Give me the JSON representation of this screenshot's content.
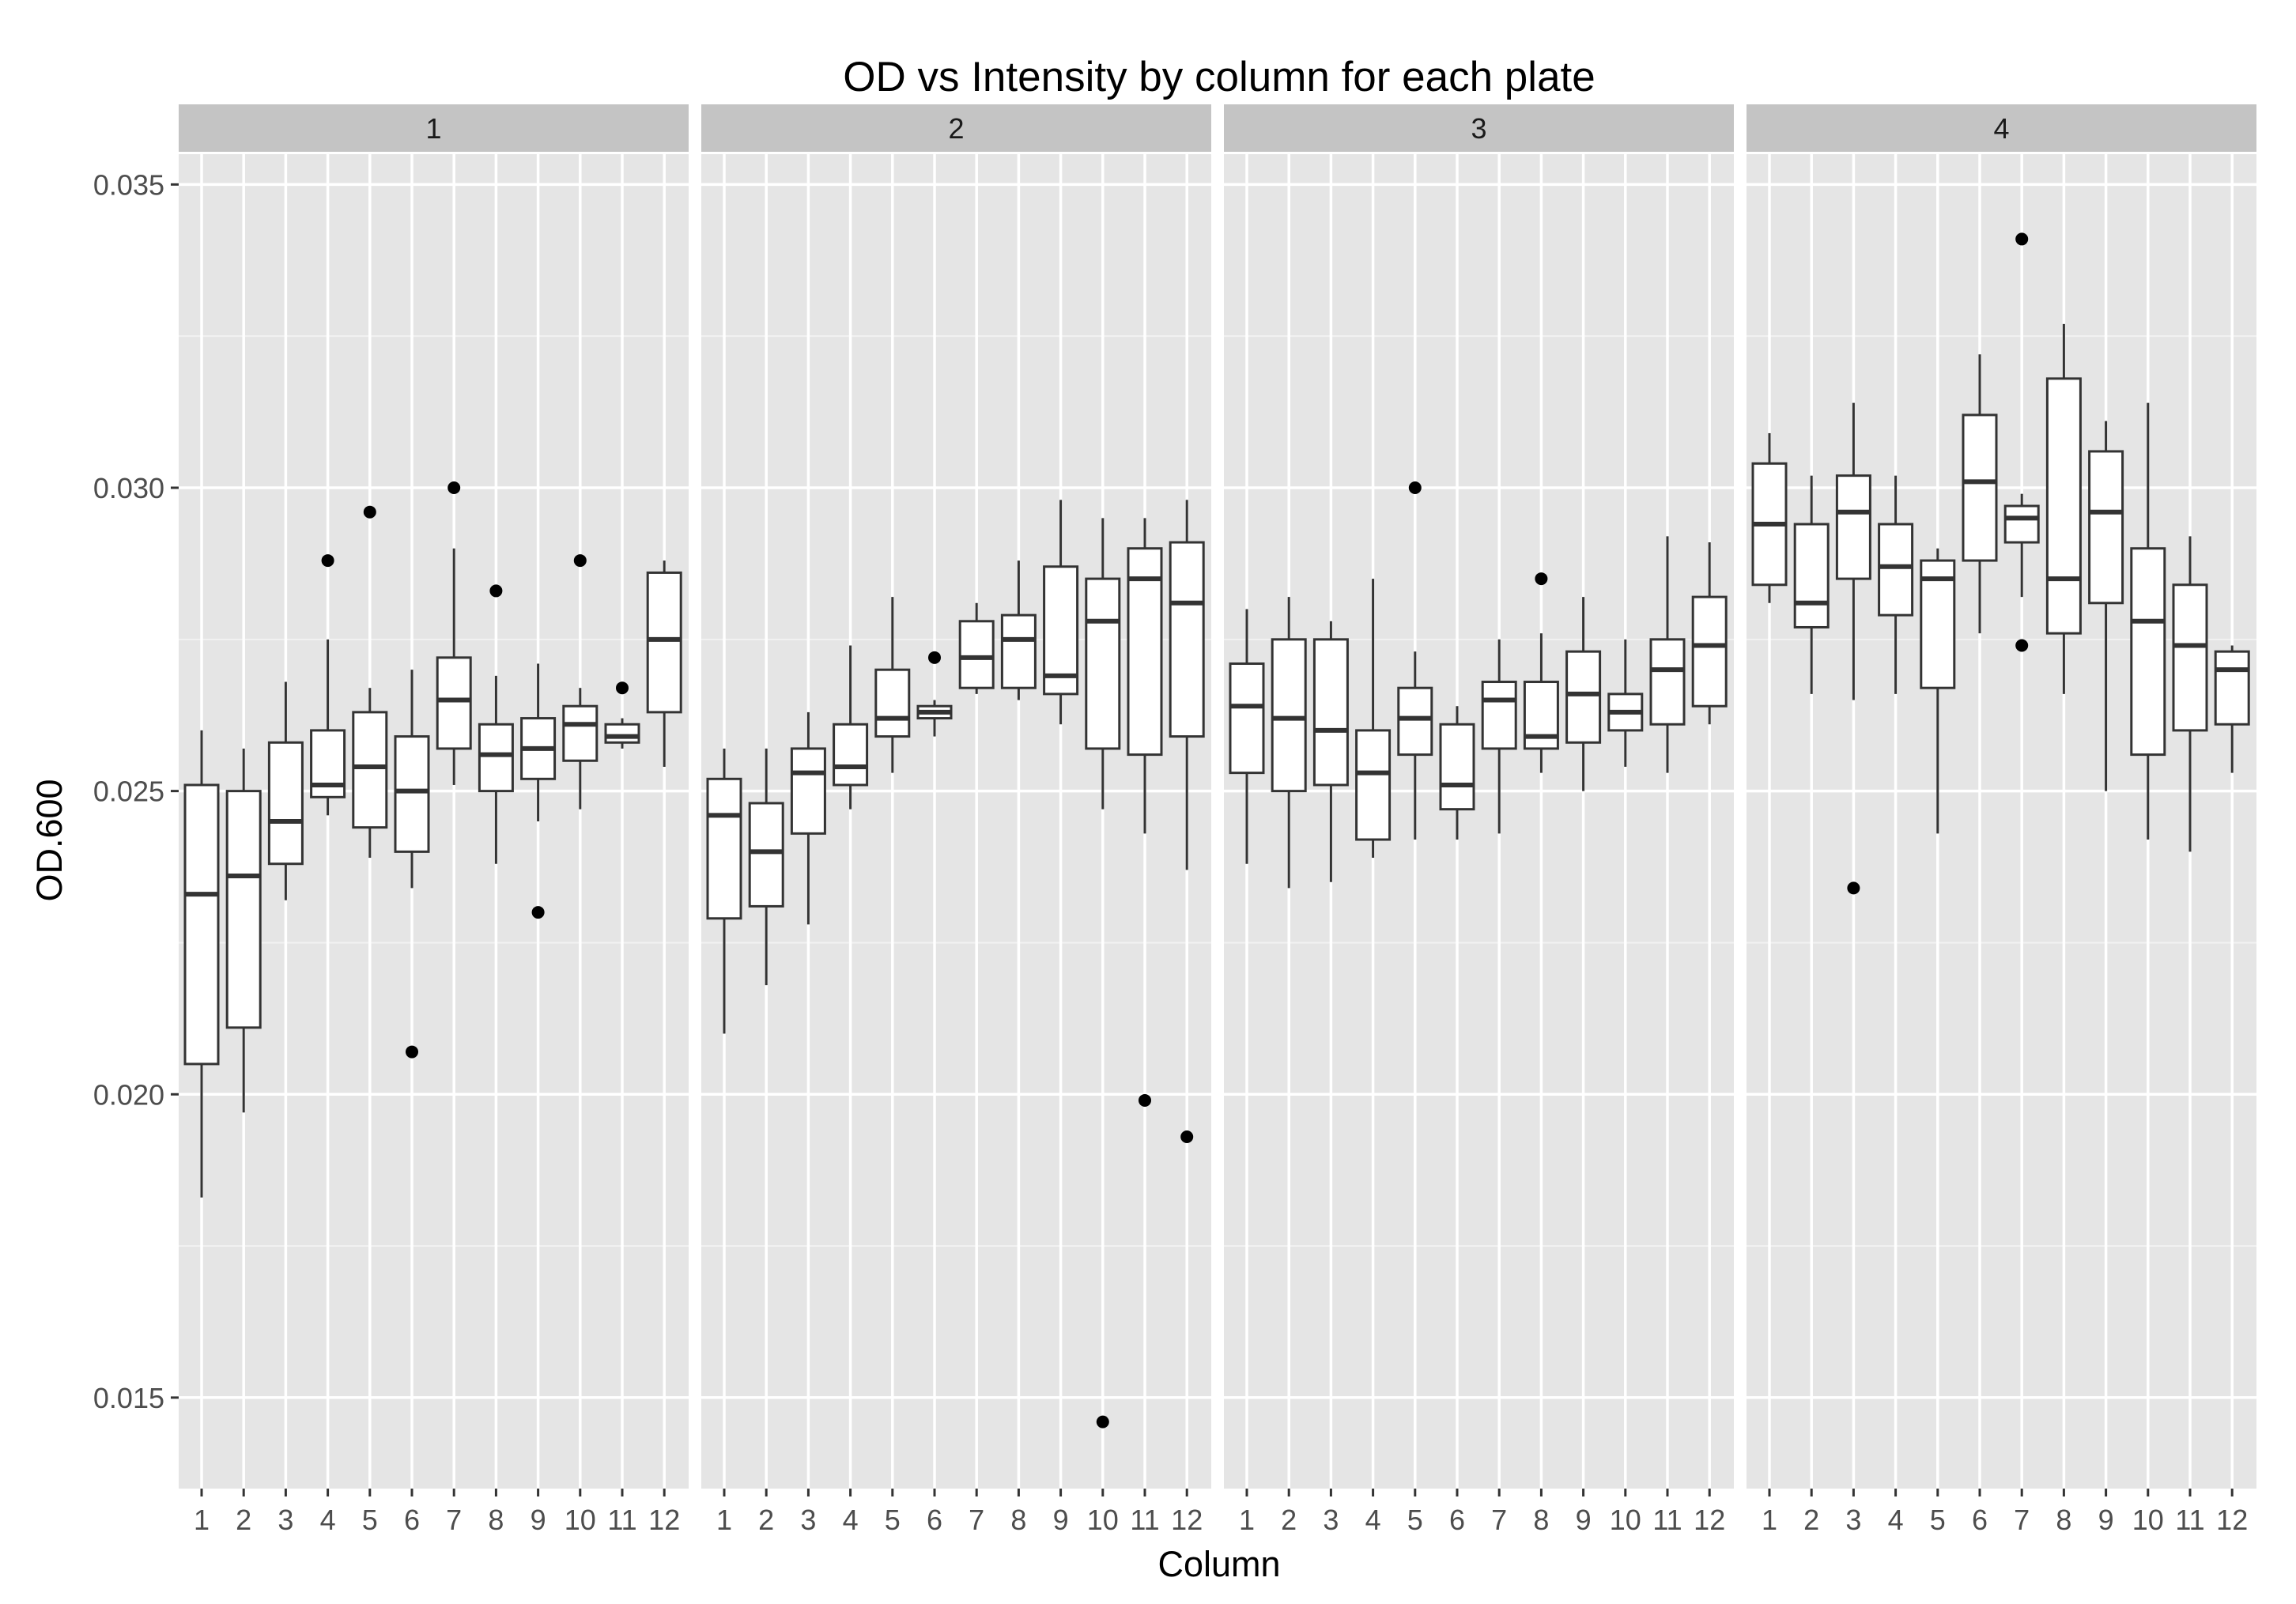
{
  "chart_data": {
    "type": "boxplot",
    "title": "OD vs Intensity by column for each plate",
    "xlabel": "Column",
    "ylabel": "OD.600",
    "ylim": [
      0.0135,
      0.0355
    ],
    "yticks": [
      0.015,
      0.02,
      0.025,
      0.03,
      0.035
    ],
    "ytick_labels": [
      "0.015",
      "0.020",
      "0.025",
      "0.030",
      "0.035"
    ],
    "categories": [
      "1",
      "2",
      "3",
      "4",
      "5",
      "6",
      "7",
      "8",
      "9",
      "10",
      "11",
      "12"
    ],
    "grid": true,
    "legend": "none",
    "colors": {
      "panel_bg": "#e5e5e5",
      "grid_major": "#ffffff",
      "strip_bg": "#c4c4c4",
      "box_fill": "#ffffff",
      "box_line": "#333333",
      "outlier": "#000000"
    },
    "panels": [
      {
        "label": "1",
        "boxes": [
          {
            "column": "1",
            "min": 0.0183,
            "q1": 0.0205,
            "median": 0.0233,
            "q3": 0.0251,
            "max": 0.026,
            "outliers": []
          },
          {
            "column": "2",
            "min": 0.0197,
            "q1": 0.0211,
            "median": 0.0236,
            "q3": 0.025,
            "max": 0.0257,
            "outliers": []
          },
          {
            "column": "3",
            "min": 0.0232,
            "q1": 0.0238,
            "median": 0.0245,
            "q3": 0.0258,
            "max": 0.0268,
            "outliers": []
          },
          {
            "column": "4",
            "min": 0.0246,
            "q1": 0.0249,
            "median": 0.0251,
            "q3": 0.026,
            "max": 0.0275,
            "outliers": [
              0.0288
            ]
          },
          {
            "column": "5",
            "min": 0.0239,
            "q1": 0.0244,
            "median": 0.0254,
            "q3": 0.0263,
            "max": 0.0267,
            "outliers": [
              0.0296
            ]
          },
          {
            "column": "6",
            "min": 0.0234,
            "q1": 0.024,
            "median": 0.025,
            "q3": 0.0259,
            "max": 0.027,
            "outliers": [
              0.0207
            ]
          },
          {
            "column": "7",
            "min": 0.0251,
            "q1": 0.0257,
            "median": 0.0265,
            "q3": 0.0272,
            "max": 0.029,
            "outliers": [
              0.03
            ]
          },
          {
            "column": "8",
            "min": 0.0238,
            "q1": 0.025,
            "median": 0.0256,
            "q3": 0.0261,
            "max": 0.0269,
            "outliers": [
              0.0283
            ]
          },
          {
            "column": "9",
            "min": 0.0245,
            "q1": 0.0252,
            "median": 0.0257,
            "q3": 0.0262,
            "max": 0.0271,
            "outliers": [
              0.023
            ]
          },
          {
            "column": "10",
            "min": 0.0247,
            "q1": 0.0255,
            "median": 0.0261,
            "q3": 0.0264,
            "max": 0.0267,
            "outliers": [
              0.0288
            ]
          },
          {
            "column": "11",
            "min": 0.0257,
            "q1": 0.0258,
            "median": 0.0259,
            "q3": 0.0261,
            "max": 0.0262,
            "outliers": [
              0.0267
            ]
          },
          {
            "column": "12",
            "min": 0.0254,
            "q1": 0.0263,
            "median": 0.0275,
            "q3": 0.0286,
            "max": 0.0288,
            "outliers": []
          }
        ]
      },
      {
        "label": "2",
        "boxes": [
          {
            "column": "1",
            "min": 0.021,
            "q1": 0.0229,
            "median": 0.0246,
            "q3": 0.0252,
            "max": 0.0257,
            "outliers": []
          },
          {
            "column": "2",
            "min": 0.0218,
            "q1": 0.0231,
            "median": 0.024,
            "q3": 0.0248,
            "max": 0.0257,
            "outliers": []
          },
          {
            "column": "3",
            "min": 0.0228,
            "q1": 0.0243,
            "median": 0.0253,
            "q3": 0.0257,
            "max": 0.0263,
            "outliers": []
          },
          {
            "column": "4",
            "min": 0.0247,
            "q1": 0.0251,
            "median": 0.0254,
            "q3": 0.0261,
            "max": 0.0274,
            "outliers": []
          },
          {
            "column": "5",
            "min": 0.0253,
            "q1": 0.0259,
            "median": 0.0262,
            "q3": 0.027,
            "max": 0.0282,
            "outliers": []
          },
          {
            "column": "6",
            "min": 0.0259,
            "q1": 0.0262,
            "median": 0.0263,
            "q3": 0.0264,
            "max": 0.0265,
            "outliers": [
              0.0272
            ]
          },
          {
            "column": "7",
            "min": 0.0266,
            "q1": 0.0267,
            "median": 0.0272,
            "q3": 0.0278,
            "max": 0.0281,
            "outliers": []
          },
          {
            "column": "8",
            "min": 0.0265,
            "q1": 0.0267,
            "median": 0.0275,
            "q3": 0.0279,
            "max": 0.0288,
            "outliers": []
          },
          {
            "column": "9",
            "min": 0.0261,
            "q1": 0.0266,
            "median": 0.0269,
            "q3": 0.0287,
            "max": 0.0298,
            "outliers": []
          },
          {
            "column": "10",
            "min": 0.0247,
            "q1": 0.0257,
            "median": 0.0278,
            "q3": 0.0285,
            "max": 0.0295,
            "outliers": [
              0.0146
            ]
          },
          {
            "column": "11",
            "min": 0.0243,
            "q1": 0.0256,
            "median": 0.0285,
            "q3": 0.029,
            "max": 0.0295,
            "outliers": [
              0.0199
            ]
          },
          {
            "column": "12",
            "min": 0.0237,
            "q1": 0.0259,
            "median": 0.0281,
            "q3": 0.0291,
            "max": 0.0298,
            "outliers": [
              0.0193
            ]
          }
        ]
      },
      {
        "label": "3",
        "boxes": [
          {
            "column": "1",
            "min": 0.0238,
            "q1": 0.0253,
            "median": 0.0264,
            "q3": 0.0271,
            "max": 0.028,
            "outliers": []
          },
          {
            "column": "2",
            "min": 0.0234,
            "q1": 0.025,
            "median": 0.0262,
            "q3": 0.0275,
            "max": 0.0282,
            "outliers": []
          },
          {
            "column": "3",
            "min": 0.0235,
            "q1": 0.0251,
            "median": 0.026,
            "q3": 0.0275,
            "max": 0.0278,
            "outliers": []
          },
          {
            "column": "4",
            "min": 0.0239,
            "q1": 0.0242,
            "median": 0.0253,
            "q3": 0.026,
            "max": 0.0285,
            "outliers": []
          },
          {
            "column": "5",
            "min": 0.0242,
            "q1": 0.0256,
            "median": 0.0262,
            "q3": 0.0267,
            "max": 0.0273,
            "outliers": [
              0.03
            ]
          },
          {
            "column": "6",
            "min": 0.0242,
            "q1": 0.0247,
            "median": 0.0251,
            "q3": 0.0261,
            "max": 0.0264,
            "outliers": []
          },
          {
            "column": "7",
            "min": 0.0243,
            "q1": 0.0257,
            "median": 0.0265,
            "q3": 0.0268,
            "max": 0.0275,
            "outliers": []
          },
          {
            "column": "8",
            "min": 0.0253,
            "q1": 0.0257,
            "median": 0.0259,
            "q3": 0.0268,
            "max": 0.0276,
            "outliers": [
              0.0285
            ]
          },
          {
            "column": "9",
            "min": 0.025,
            "q1": 0.0258,
            "median": 0.0266,
            "q3": 0.0273,
            "max": 0.0282,
            "outliers": []
          },
          {
            "column": "10",
            "min": 0.0254,
            "q1": 0.026,
            "median": 0.0263,
            "q3": 0.0266,
            "max": 0.0275,
            "outliers": []
          },
          {
            "column": "11",
            "min": 0.0253,
            "q1": 0.0261,
            "median": 0.027,
            "q3": 0.0275,
            "max": 0.0292,
            "outliers": []
          },
          {
            "column": "12",
            "min": 0.0261,
            "q1": 0.0264,
            "median": 0.0274,
            "q3": 0.0282,
            "max": 0.0291,
            "outliers": []
          }
        ]
      },
      {
        "label": "4",
        "boxes": [
          {
            "column": "1",
            "min": 0.0281,
            "q1": 0.0284,
            "median": 0.0294,
            "q3": 0.0304,
            "max": 0.0309,
            "outliers": []
          },
          {
            "column": "2",
            "min": 0.0266,
            "q1": 0.0277,
            "median": 0.0281,
            "q3": 0.0294,
            "max": 0.0302,
            "outliers": []
          },
          {
            "column": "3",
            "min": 0.0265,
            "q1": 0.0285,
            "median": 0.0296,
            "q3": 0.0302,
            "max": 0.0314,
            "outliers": [
              0.0234
            ]
          },
          {
            "column": "4",
            "min": 0.0266,
            "q1": 0.0279,
            "median": 0.0287,
            "q3": 0.0294,
            "max": 0.0302,
            "outliers": []
          },
          {
            "column": "5",
            "min": 0.0243,
            "q1": 0.0267,
            "median": 0.0285,
            "q3": 0.0288,
            "max": 0.029,
            "outliers": []
          },
          {
            "column": "6",
            "min": 0.0276,
            "q1": 0.0288,
            "median": 0.0301,
            "q3": 0.0312,
            "max": 0.0322,
            "outliers": []
          },
          {
            "column": "7",
            "min": 0.0282,
            "q1": 0.0291,
            "median": 0.0295,
            "q3": 0.0297,
            "max": 0.0299,
            "outliers": [
              0.0341,
              0.0274
            ]
          },
          {
            "column": "8",
            "min": 0.0266,
            "q1": 0.0276,
            "median": 0.0285,
            "q3": 0.0318,
            "max": 0.0327,
            "outliers": []
          },
          {
            "column": "9",
            "min": 0.025,
            "q1": 0.0281,
            "median": 0.0296,
            "q3": 0.0306,
            "max": 0.0311,
            "outliers": []
          },
          {
            "column": "10",
            "min": 0.0242,
            "q1": 0.0256,
            "median": 0.0278,
            "q3": 0.029,
            "max": 0.0314,
            "outliers": []
          },
          {
            "column": "11",
            "min": 0.024,
            "q1": 0.026,
            "median": 0.0274,
            "q3": 0.0284,
            "max": 0.0292,
            "outliers": []
          },
          {
            "column": "12",
            "min": 0.0253,
            "q1": 0.0261,
            "median": 0.027,
            "q3": 0.0273,
            "max": 0.0274,
            "outliers": []
          }
        ]
      }
    ]
  }
}
